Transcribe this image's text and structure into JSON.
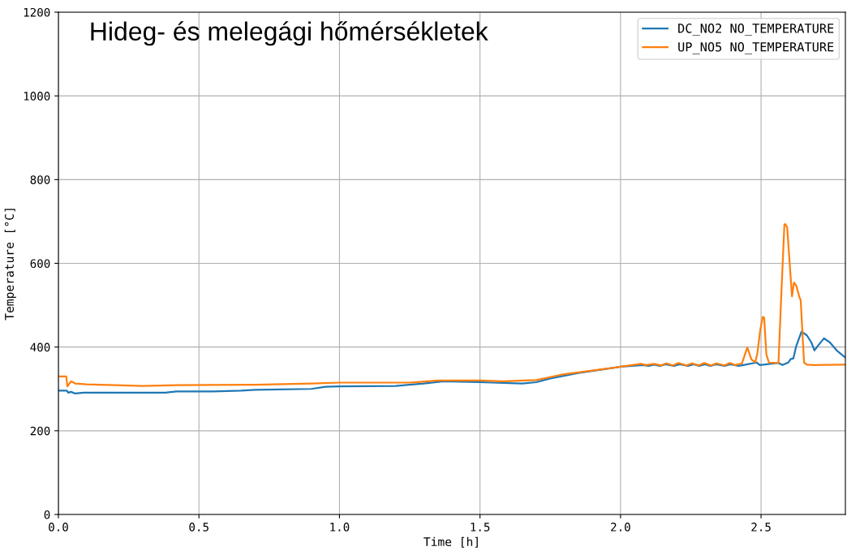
{
  "chart_data": {
    "type": "line",
    "title": "Hideg- és melegági hőmérsékletek",
    "xlabel": "Time [h]",
    "ylabel": "Temperature [°C]",
    "xlim": [
      0,
      2.8
    ],
    "ylim": [
      0,
      1200
    ],
    "xticks": [
      {
        "value": 0,
        "label": "0.0"
      },
      {
        "value": 0.5,
        "label": "0.5"
      },
      {
        "value": 1,
        "label": "1.0"
      },
      {
        "value": 1.5,
        "label": "1.5"
      },
      {
        "value": 2,
        "label": "2.0"
      },
      {
        "value": 2.5,
        "label": "2.5"
      }
    ],
    "yticks": [
      0,
      200,
      400,
      600,
      800,
      1000,
      1200
    ],
    "grid": true,
    "legend": "top right",
    "marker": "none",
    "line_style": "solid",
    "series": [
      {
        "name": "DC_NO2 NO_TEMPERATURE",
        "color": "#1f77b4",
        "x": [
          0,
          0.03,
          0.035,
          0.045,
          0.06,
          0.09,
          0.38,
          0.42,
          0.55,
          0.65,
          0.7,
          0.9,
          0.95,
          1.0,
          1.2,
          1.3,
          1.37,
          1.5,
          1.65,
          1.7,
          1.75,
          1.85,
          2.0,
          2.08,
          2.1,
          2.12,
          2.14,
          2.16,
          2.19,
          2.21,
          2.24,
          2.26,
          2.28,
          2.3,
          2.32,
          2.34,
          2.37,
          2.39,
          2.42,
          2.437,
          2.484,
          2.496,
          2.562,
          2.576,
          2.597,
          2.605,
          2.615,
          2.625,
          2.644,
          2.663,
          2.679,
          2.69,
          2.701,
          2.724,
          2.745,
          2.769,
          2.8
        ],
        "values": [
          296,
          296,
          291,
          293,
          289,
          291,
          291,
          294,
          294,
          296,
          298,
          300,
          305,
          306,
          307,
          313,
          318,
          316,
          313,
          316,
          325,
          338,
          353,
          357,
          355,
          358,
          355,
          359,
          355,
          359,
          355,
          359,
          355,
          359,
          355,
          359,
          355,
          359,
          355,
          357,
          363,
          357,
          362,
          357,
          363,
          371,
          373,
          402,
          437,
          428,
          411,
          392,
          402,
          421,
          411,
          392,
          375
        ]
      },
      {
        "name": "UP_NO5 NO_TEMPERATURE",
        "color": "#ff7f0e",
        "x": [
          0,
          0.028,
          0.032,
          0.045,
          0.06,
          0.1,
          0.3,
          0.42,
          0.7,
          0.9,
          1.0,
          1.25,
          1.35,
          1.5,
          1.58,
          1.7,
          1.79,
          2.0,
          2.072,
          2.091,
          2.12,
          2.144,
          2.163,
          2.187,
          2.206,
          2.235,
          2.254,
          2.278,
          2.298,
          2.322,
          2.341,
          2.37,
          2.389,
          2.408,
          2.432,
          2.451,
          2.466,
          2.48,
          2.487,
          2.497,
          2.506,
          2.511,
          2.519,
          2.528,
          2.562,
          2.572,
          2.583,
          2.586,
          2.593,
          2.61,
          2.617,
          2.625,
          2.637,
          2.641,
          2.653,
          2.663,
          2.687,
          2.8
        ],
        "values": [
          330,
          330,
          306,
          318,
          313,
          311,
          307,
          309,
          310,
          313,
          315,
          315,
          320,
          320,
          318,
          321,
          334,
          353,
          360,
          357,
          360,
          356,
          361,
          356,
          362,
          356,
          361,
          356,
          362,
          356,
          361,
          356,
          362,
          357,
          361,
          399,
          370,
          364,
          386,
          440,
          472,
          470,
          382,
          363,
          362,
          525,
          692,
          694,
          686,
          521,
          554,
          547,
          518,
          512,
          363,
          358,
          357,
          358
        ]
      }
    ]
  }
}
